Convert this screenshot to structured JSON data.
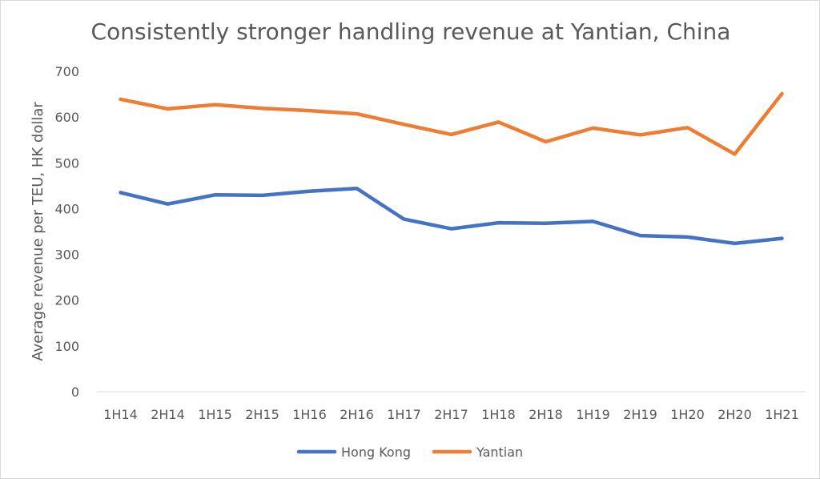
{
  "chart_data": {
    "type": "line",
    "title": "Consistently stronger handling revenue at Yantian, China",
    "xlabel": "",
    "ylabel": "Average revenue per TEU, HK dollar",
    "categories": [
      "1H14",
      "2H14",
      "1H15",
      "2H15",
      "1H16",
      "2H16",
      "1H17",
      "2H17",
      "1H18",
      "2H18",
      "1H19",
      "2H19",
      "1H20",
      "2H20",
      "1H21"
    ],
    "ylim": [
      0,
      700
    ],
    "yticks": [
      0,
      100,
      200,
      300,
      400,
      500,
      600,
      700
    ],
    "grid": false,
    "legend_position": "bottom",
    "series": [
      {
        "name": "Hong Kong",
        "color": "#4472C4",
        "values": [
          435,
          410,
          430,
          429,
          438,
          444,
          377,
          356,
          369,
          368,
          372,
          341,
          338,
          324,
          335
        ]
      },
      {
        "name": "Yantian",
        "color": "#ED7D31",
        "values": [
          639,
          618,
          627,
          619,
          614,
          607,
          584,
          562,
          589,
          546,
          576,
          561,
          577,
          519,
          651
        ]
      }
    ]
  }
}
